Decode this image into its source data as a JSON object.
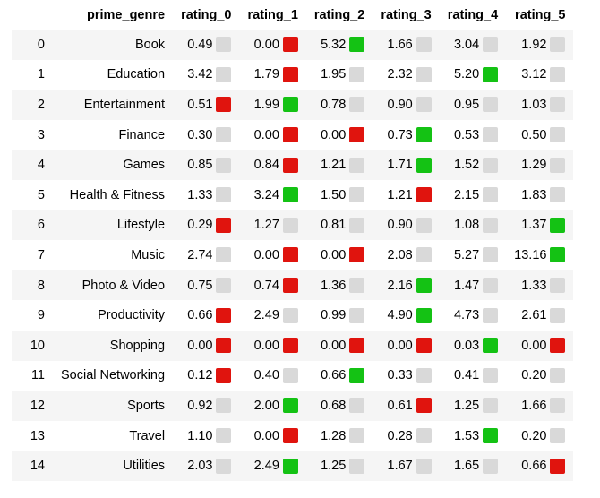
{
  "table": {
    "columns": [
      "",
      "prime_genre",
      "rating_0",
      "rating_1",
      "rating_2",
      "rating_3",
      "rating_4",
      "rating_5"
    ],
    "rows": [
      {
        "index": "0",
        "genre": "Book",
        "values": [
          {
            "v": "0.49",
            "c": "gray"
          },
          {
            "v": "0.00",
            "c": "red"
          },
          {
            "v": "5.32",
            "c": "green"
          },
          {
            "v": "1.66",
            "c": "gray"
          },
          {
            "v": "3.04",
            "c": "gray"
          },
          {
            "v": "1.92",
            "c": "gray"
          }
        ]
      },
      {
        "index": "1",
        "genre": "Education",
        "values": [
          {
            "v": "3.42",
            "c": "gray"
          },
          {
            "v": "1.79",
            "c": "red"
          },
          {
            "v": "1.95",
            "c": "gray"
          },
          {
            "v": "2.32",
            "c": "gray"
          },
          {
            "v": "5.20",
            "c": "green"
          },
          {
            "v": "3.12",
            "c": "gray"
          }
        ]
      },
      {
        "index": "2",
        "genre": "Entertainment",
        "values": [
          {
            "v": "0.51",
            "c": "red"
          },
          {
            "v": "1.99",
            "c": "green"
          },
          {
            "v": "0.78",
            "c": "gray"
          },
          {
            "v": "0.90",
            "c": "gray"
          },
          {
            "v": "0.95",
            "c": "gray"
          },
          {
            "v": "1.03",
            "c": "gray"
          }
        ]
      },
      {
        "index": "3",
        "genre": "Finance",
        "values": [
          {
            "v": "0.30",
            "c": "gray"
          },
          {
            "v": "0.00",
            "c": "red"
          },
          {
            "v": "0.00",
            "c": "red"
          },
          {
            "v": "0.73",
            "c": "green"
          },
          {
            "v": "0.53",
            "c": "gray"
          },
          {
            "v": "0.50",
            "c": "gray"
          }
        ]
      },
      {
        "index": "4",
        "genre": "Games",
        "values": [
          {
            "v": "0.85",
            "c": "gray"
          },
          {
            "v": "0.84",
            "c": "red"
          },
          {
            "v": "1.21",
            "c": "gray"
          },
          {
            "v": "1.71",
            "c": "green"
          },
          {
            "v": "1.52",
            "c": "gray"
          },
          {
            "v": "1.29",
            "c": "gray"
          }
        ]
      },
      {
        "index": "5",
        "genre": "Health & Fitness",
        "values": [
          {
            "v": "1.33",
            "c": "gray"
          },
          {
            "v": "3.24",
            "c": "green"
          },
          {
            "v": "1.50",
            "c": "gray"
          },
          {
            "v": "1.21",
            "c": "red"
          },
          {
            "v": "2.15",
            "c": "gray"
          },
          {
            "v": "1.83",
            "c": "gray"
          }
        ]
      },
      {
        "index": "6",
        "genre": "Lifestyle",
        "values": [
          {
            "v": "0.29",
            "c": "red"
          },
          {
            "v": "1.27",
            "c": "gray"
          },
          {
            "v": "0.81",
            "c": "gray"
          },
          {
            "v": "0.90",
            "c": "gray"
          },
          {
            "v": "1.08",
            "c": "gray"
          },
          {
            "v": "1.37",
            "c": "green"
          }
        ]
      },
      {
        "index": "7",
        "genre": "Music",
        "values": [
          {
            "v": "2.74",
            "c": "gray"
          },
          {
            "v": "0.00",
            "c": "red"
          },
          {
            "v": "0.00",
            "c": "red"
          },
          {
            "v": "2.08",
            "c": "gray"
          },
          {
            "v": "5.27",
            "c": "gray"
          },
          {
            "v": "13.16",
            "c": "green"
          }
        ]
      },
      {
        "index": "8",
        "genre": "Photo & Video",
        "values": [
          {
            "v": "0.75",
            "c": "gray"
          },
          {
            "v": "0.74",
            "c": "red"
          },
          {
            "v": "1.36",
            "c": "gray"
          },
          {
            "v": "2.16",
            "c": "green"
          },
          {
            "v": "1.47",
            "c": "gray"
          },
          {
            "v": "1.33",
            "c": "gray"
          }
        ]
      },
      {
        "index": "9",
        "genre": "Productivity",
        "values": [
          {
            "v": "0.66",
            "c": "red"
          },
          {
            "v": "2.49",
            "c": "gray"
          },
          {
            "v": "0.99",
            "c": "gray"
          },
          {
            "v": "4.90",
            "c": "green"
          },
          {
            "v": "4.73",
            "c": "gray"
          },
          {
            "v": "2.61",
            "c": "gray"
          }
        ]
      },
      {
        "index": "10",
        "genre": "Shopping",
        "values": [
          {
            "v": "0.00",
            "c": "red"
          },
          {
            "v": "0.00",
            "c": "red"
          },
          {
            "v": "0.00",
            "c": "red"
          },
          {
            "v": "0.00",
            "c": "red"
          },
          {
            "v": "0.03",
            "c": "green"
          },
          {
            "v": "0.00",
            "c": "red"
          }
        ]
      },
      {
        "index": "11",
        "genre": "Social Networking",
        "values": [
          {
            "v": "0.12",
            "c": "red"
          },
          {
            "v": "0.40",
            "c": "gray"
          },
          {
            "v": "0.66",
            "c": "green"
          },
          {
            "v": "0.33",
            "c": "gray"
          },
          {
            "v": "0.41",
            "c": "gray"
          },
          {
            "v": "0.20",
            "c": "gray"
          }
        ]
      },
      {
        "index": "12",
        "genre": "Sports",
        "values": [
          {
            "v": "0.92",
            "c": "gray"
          },
          {
            "v": "2.00",
            "c": "green"
          },
          {
            "v": "0.68",
            "c": "gray"
          },
          {
            "v": "0.61",
            "c": "red"
          },
          {
            "v": "1.25",
            "c": "gray"
          },
          {
            "v": "1.66",
            "c": "gray"
          }
        ]
      },
      {
        "index": "13",
        "genre": "Travel",
        "values": [
          {
            "v": "1.10",
            "c": "gray"
          },
          {
            "v": "0.00",
            "c": "red"
          },
          {
            "v": "1.28",
            "c": "gray"
          },
          {
            "v": "0.28",
            "c": "gray"
          },
          {
            "v": "1.53",
            "c": "green"
          },
          {
            "v": "0.20",
            "c": "gray"
          }
        ]
      },
      {
        "index": "14",
        "genre": "Utilities",
        "values": [
          {
            "v": "2.03",
            "c": "gray"
          },
          {
            "v": "2.49",
            "c": "green"
          },
          {
            "v": "1.25",
            "c": "gray"
          },
          {
            "v": "1.67",
            "c": "gray"
          },
          {
            "v": "1.65",
            "c": "gray"
          },
          {
            "v": "0.66",
            "c": "red"
          }
        ]
      }
    ]
  },
  "colors": {
    "red": "#e0140e",
    "green": "#14c214",
    "gray": "#d9d9d9",
    "stripe": "#f5f5f5"
  }
}
